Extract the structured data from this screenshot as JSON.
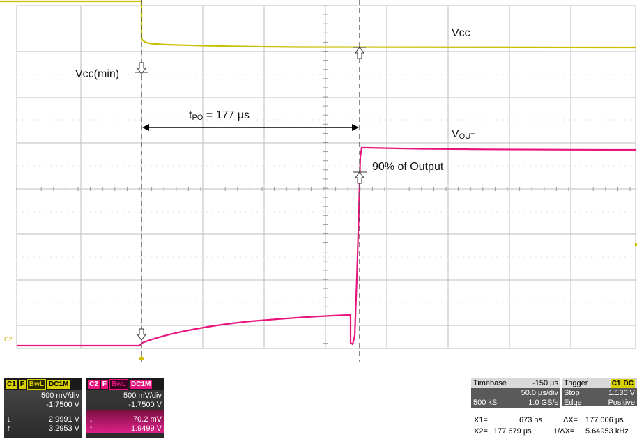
{
  "annotations": {
    "vcc_label": "Vcc",
    "vout_main": "V",
    "vout_sub": "OUT",
    "vccmin_label": "Vcc(min)",
    "tpo_main": "t",
    "tpo_sub": "PO",
    "tpo_value": " = 177 µs",
    "output90_label": "90% of Output"
  },
  "channel_tags": {
    "c2_left": "C2"
  },
  "c1": {
    "tag": "C1",
    "flag_f": "F",
    "flag_bwl": "BwL",
    "coupling": "DC1M",
    "volts_div": "500 mV/div",
    "offset": "-1.7500 V",
    "m1_marker": "↓",
    "m1_value": "2.9991 V",
    "m2_marker": "↑",
    "m2_value": "3.2953 V"
  },
  "c2": {
    "tag": "C2",
    "flag_f": "F",
    "flag_bwl": "BwL",
    "coupling": "DC1M",
    "volts_div": "500 mV/div",
    "offset": "-1.7500 V",
    "m1_marker": "↓",
    "m1_value": "70.2 mV",
    "m2_marker": "↑",
    "m2_value": "1.9499 V"
  },
  "timebase": {
    "label": "Timebase",
    "delay": "-150 µs",
    "time_div": "50.0 µs/div",
    "samples": "500 kS",
    "rate": "1.0 GS/s"
  },
  "trigger": {
    "label": "Trigger",
    "channel": "C1",
    "coupling": "DC",
    "mode": "Stop",
    "level": "1.130 V",
    "type": "Edge",
    "slope": "Positive"
  },
  "cursors": {
    "x1_label": "X1=",
    "x1_value": "673 ns",
    "dx_label": "ΔX=",
    "dx_value": "177.006 µs",
    "x2_label": "X2=",
    "x2_value": "177.679 µs",
    "inv_dx_label": "1/ΔX=",
    "inv_dx_value": "5.64953 kHz"
  },
  "colors": {
    "ch1": "#c8c000",
    "ch2": "#e8147e",
    "grid": "#bdbdbd",
    "cursor": "#555555"
  }
}
